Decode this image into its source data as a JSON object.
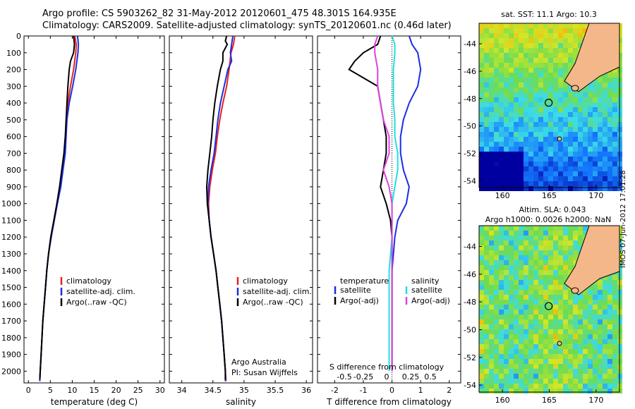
{
  "header": {
    "line1": "Argo profile: CS 5903262_82 31-May-2012 20120601_475 48.301S 164.935E",
    "line2": "Climatology: CARS2009. Satellite-adjusted climatology: synTS_20120601.nc (0.46d later)"
  },
  "colors": {
    "climatology": "#e8201c",
    "satellite": "#1a2ee6",
    "argo": "#000000",
    "sal_satellite": "#22e0e0",
    "sal_argo": "#e040e0"
  },
  "chart_data": [
    {
      "type": "line",
      "xlabel": "temperature (deg C)",
      "ylabel": "",
      "xlim": [
        -1,
        31
      ],
      "ylim": [
        2070,
        0
      ],
      "xticks": [
        0,
        5,
        10,
        15,
        20,
        25,
        30
      ],
      "yticks": [
        0,
        100,
        200,
        300,
        400,
        500,
        600,
        700,
        800,
        900,
        1000,
        1100,
        1200,
        1300,
        1400,
        1500,
        1600,
        1700,
        1800,
        1900,
        2000
      ],
      "legend": {
        "placement": "lower-right",
        "entries": [
          "climatology",
          "satellite-adj. clim.",
          "Argo(..raw -QC)"
        ]
      },
      "series": [
        {
          "name": "climatology",
          "color": "climatology",
          "points": [
            [
              10.6,
              0
            ],
            [
              10.9,
              50
            ],
            [
              10.8,
              100
            ],
            [
              10.3,
              200
            ],
            [
              9.6,
              300
            ],
            [
              9.0,
              400
            ],
            [
              8.7,
              500
            ],
            [
              8.5,
              600
            ],
            [
              8.3,
              700
            ],
            [
              7.8,
              800
            ],
            [
              7.3,
              900
            ],
            [
              6.6,
              1000
            ],
            [
              5.9,
              1100
            ],
            [
              5.2,
              1200
            ],
            [
              4.6,
              1300
            ],
            [
              4.2,
              1400
            ],
            [
              3.9,
              1500
            ],
            [
              3.6,
              1600
            ],
            [
              3.3,
              1700
            ],
            [
              3.1,
              1800
            ],
            [
              2.9,
              1900
            ],
            [
              2.7,
              2000
            ],
            [
              2.6,
              2060
            ]
          ]
        },
        {
          "name": "satellite-adj. clim.",
          "color": "satellite",
          "points": [
            [
              11.2,
              0
            ],
            [
              11.4,
              50
            ],
            [
              11.3,
              100
            ],
            [
              10.8,
              200
            ],
            [
              10.1,
              300
            ],
            [
              9.3,
              400
            ],
            [
              8.8,
              500
            ],
            [
              8.6,
              600
            ],
            [
              8.4,
              700
            ],
            [
              7.9,
              800
            ],
            [
              7.4,
              900
            ],
            [
              6.6,
              1000
            ],
            [
              5.9,
              1100
            ],
            [
              5.2,
              1200
            ],
            [
              4.6,
              1300
            ],
            [
              4.2,
              1400
            ],
            [
              3.9,
              1500
            ],
            [
              3.6,
              1600
            ],
            [
              3.3,
              1700
            ],
            [
              3.1,
              1800
            ],
            [
              2.9,
              1900
            ],
            [
              2.7,
              2000
            ],
            [
              2.6,
              2060
            ]
          ]
        },
        {
          "name": "Argo(..raw -QC)",
          "color": "argo",
          "points": [
            [
              10.3,
              0
            ],
            [
              10.5,
              50
            ],
            [
              10.3,
              100
            ],
            [
              9.6,
              150
            ],
            [
              9.3,
              200
            ],
            [
              9.0,
              300
            ],
            [
              8.8,
              400
            ],
            [
              8.6,
              500
            ],
            [
              8.4,
              600
            ],
            [
              8.1,
              700
            ],
            [
              7.6,
              800
            ],
            [
              7.1,
              900
            ],
            [
              6.5,
              1000
            ],
            [
              5.8,
              1100
            ],
            [
              5.1,
              1200
            ],
            [
              4.6,
              1300
            ],
            [
              4.2,
              1400
            ],
            [
              3.9,
              1500
            ],
            [
              3.6,
              1600
            ],
            [
              3.3,
              1700
            ],
            [
              3.1,
              1800
            ],
            [
              2.9,
              1900
            ],
            [
              2.7,
              2000
            ],
            [
              2.6,
              2050
            ]
          ]
        }
      ]
    },
    {
      "type": "line",
      "xlabel": "salinity",
      "xlim": [
        33.8,
        36.1
      ],
      "ylim": [
        2070,
        0
      ],
      "xticks": [
        34,
        34.5,
        35,
        35.5,
        36
      ],
      "legend": {
        "placement": "lower-right",
        "entries": [
          "climatology",
          "satellite-adj. clim.",
          "Argo(..raw -QC)"
        ]
      },
      "annotation": [
        "Argo Australia",
        "PI: Susan Wijffels"
      ],
      "series": [
        {
          "name": "climatology",
          "color": "climatology",
          "points": [
            [
              34.85,
              0
            ],
            [
              34.83,
              50
            ],
            [
              34.79,
              100
            ],
            [
              34.76,
              200
            ],
            [
              34.72,
              300
            ],
            [
              34.66,
              400
            ],
            [
              34.61,
              500
            ],
            [
              34.57,
              600
            ],
            [
              34.54,
              700
            ],
            [
              34.49,
              800
            ],
            [
              34.45,
              900
            ],
            [
              34.43,
              1000
            ],
            [
              34.44,
              1100
            ],
            [
              34.47,
              1200
            ],
            [
              34.51,
              1300
            ],
            [
              34.55,
              1400
            ],
            [
              34.58,
              1500
            ],
            [
              34.61,
              1600
            ],
            [
              34.64,
              1700
            ],
            [
              34.66,
              1800
            ],
            [
              34.68,
              1900
            ],
            [
              34.7,
              2000
            ],
            [
              34.71,
              2060
            ]
          ]
        },
        {
          "name": "satellite-adj. clim.",
          "color": "satellite",
          "points": [
            [
              34.82,
              0
            ],
            [
              34.8,
              50
            ],
            [
              34.78,
              100
            ],
            [
              34.8,
              150
            ],
            [
              34.74,
              200
            ],
            [
              34.68,
              300
            ],
            [
              34.62,
              400
            ],
            [
              34.58,
              500
            ],
            [
              34.55,
              600
            ],
            [
              34.52,
              700
            ],
            [
              34.47,
              800
            ],
            [
              34.43,
              900
            ],
            [
              34.42,
              1000
            ],
            [
              34.44,
              1100
            ],
            [
              34.47,
              1200
            ],
            [
              34.51,
              1300
            ],
            [
              34.55,
              1400
            ],
            [
              34.58,
              1500
            ],
            [
              34.61,
              1600
            ],
            [
              34.64,
              1700
            ],
            [
              34.66,
              1800
            ],
            [
              34.68,
              1900
            ],
            [
              34.7,
              2000
            ],
            [
              34.7,
              2060
            ]
          ]
        },
        {
          "name": "Argo(..raw -QC)",
          "color": "argo",
          "points": [
            [
              34.72,
              0
            ],
            [
              34.7,
              30
            ],
            [
              34.73,
              50
            ],
            [
              34.66,
              100
            ],
            [
              34.66,
              150
            ],
            [
              34.62,
              200
            ],
            [
              34.57,
              300
            ],
            [
              34.53,
              400
            ],
            [
              34.5,
              500
            ],
            [
              34.48,
              600
            ],
            [
              34.45,
              700
            ],
            [
              34.42,
              800
            ],
            [
              34.4,
              900
            ],
            [
              34.41,
              1000
            ],
            [
              34.44,
              1100
            ],
            [
              34.47,
              1200
            ],
            [
              34.51,
              1300
            ],
            [
              34.55,
              1400
            ],
            [
              34.58,
              1500
            ],
            [
              34.61,
              1600
            ],
            [
              34.64,
              1700
            ],
            [
              34.66,
              1800
            ],
            [
              34.68,
              1900
            ],
            [
              34.7,
              2000
            ],
            [
              34.7,
              2050
            ]
          ]
        }
      ]
    },
    {
      "type": "line",
      "xlabel": "T difference from climatology",
      "top_label": "S difference from climatology",
      "xlim": [
        -2.6,
        2.4
      ],
      "ylim": [
        2070,
        0
      ],
      "xticks": [
        -2,
        -1,
        0,
        1,
        2
      ],
      "top_ticks": [
        "-0.5",
        "-0.25",
        "0",
        "0.25",
        "0.5"
      ],
      "legend": {
        "placement": "lower-middle",
        "temperature_title": "temperature",
        "salinity_title": "salinity",
        "entries": [
          "satellite",
          "Argo(-adj)",
          "satellite",
          "Argo(-adj)"
        ]
      },
      "series": [
        {
          "name": "satellite",
          "group": "temperature",
          "color": "satellite",
          "points": [
            [
              0.6,
              0
            ],
            [
              0.7,
              50
            ],
            [
              0.9,
              100
            ],
            [
              1.0,
              200
            ],
            [
              0.9,
              300
            ],
            [
              0.6,
              400
            ],
            [
              0.4,
              500
            ],
            [
              0.3,
              600
            ],
            [
              0.3,
              700
            ],
            [
              0.4,
              800
            ],
            [
              0.6,
              900
            ],
            [
              0.5,
              1000
            ],
            [
              0.2,
              1100
            ],
            [
              0.1,
              1200
            ],
            [
              0.05,
              1300
            ],
            [
              0.0,
              1400
            ],
            [
              0.0,
              1600
            ],
            [
              0.0,
              2000
            ]
          ]
        },
        {
          "name": "Argo(-adj)",
          "group": "temperature",
          "color": "argo",
          "points": [
            [
              -0.4,
              0
            ],
            [
              -0.5,
              50
            ],
            [
              -1.0,
              100
            ],
            [
              -1.3,
              150
            ],
            [
              -1.5,
              200
            ],
            [
              -1.0,
              250
            ],
            [
              -0.5,
              300
            ],
            [
              -0.4,
              400
            ],
            [
              -0.3,
              500
            ],
            [
              -0.2,
              600
            ],
            [
              -0.2,
              700
            ],
            [
              -0.3,
              800
            ],
            [
              -0.4,
              900
            ],
            [
              -0.2,
              1000
            ],
            [
              -0.05,
              1100
            ],
            [
              0.0,
              1200
            ],
            [
              0.0,
              1400
            ],
            [
              0.0,
              2000
            ]
          ]
        },
        {
          "name": "satellite",
          "group": "salinity",
          "color": "sal_satellite",
          "points": [
            [
              0.0,
              0
            ],
            [
              0.1,
              50
            ],
            [
              0.1,
              100
            ],
            [
              0.05,
              200
            ],
            [
              0.05,
              400
            ],
            [
              0.1,
              500
            ],
            [
              0.1,
              600
            ],
            [
              0.2,
              700
            ],
            [
              0.2,
              800
            ],
            [
              0.1,
              900
            ],
            [
              0.0,
              1000
            ],
            [
              0.0,
              1200
            ],
            [
              -0.1,
              1400
            ],
            [
              -0.1,
              1600
            ],
            [
              -0.1,
              2000
            ]
          ]
        },
        {
          "name": "Argo(-adj)",
          "group": "salinity",
          "color": "sal_argo",
          "points": [
            [
              -0.5,
              0
            ],
            [
              -0.6,
              50
            ],
            [
              -0.6,
              100
            ],
            [
              -0.5,
              200
            ],
            [
              -0.5,
              300
            ],
            [
              -0.4,
              400
            ],
            [
              -0.3,
              500
            ],
            [
              -0.1,
              600
            ],
            [
              -0.1,
              700
            ],
            [
              -0.3,
              800
            ],
            [
              -0.2,
              850
            ],
            [
              -0.1,
              900
            ],
            [
              0.0,
              1000
            ],
            [
              0.0,
              1400
            ],
            [
              0.0,
              1500
            ],
            [
              0.0,
              2000
            ]
          ]
        }
      ]
    },
    {
      "type": "heatmap",
      "title": "sat. SST: 11.1  Argo: 10.3",
      "xlim": [
        157.5,
        172.5
      ],
      "ylim": [
        -54.5,
        -42.5
      ],
      "xticks": [
        160,
        165,
        170
      ],
      "yticks": [
        -44,
        -46,
        -48,
        -50,
        -52,
        -54
      ],
      "marker": [
        164.935,
        -48.301
      ]
    },
    {
      "type": "heatmap",
      "title": "Altim. SLA: 0.043",
      "subtitle": "Argo h1000: 0.0026 h2000: NaN",
      "xlim": [
        157.5,
        172.5
      ],
      "ylim": [
        -54.5,
        -42.5
      ],
      "xticks": [
        160,
        165,
        170
      ],
      "yticks": [
        -44,
        -46,
        -48,
        -50,
        -52,
        -54
      ],
      "marker": [
        164.935,
        -48.301
      ]
    }
  ],
  "watermark": "IMOS 07-Jun-2012 17:01:28"
}
